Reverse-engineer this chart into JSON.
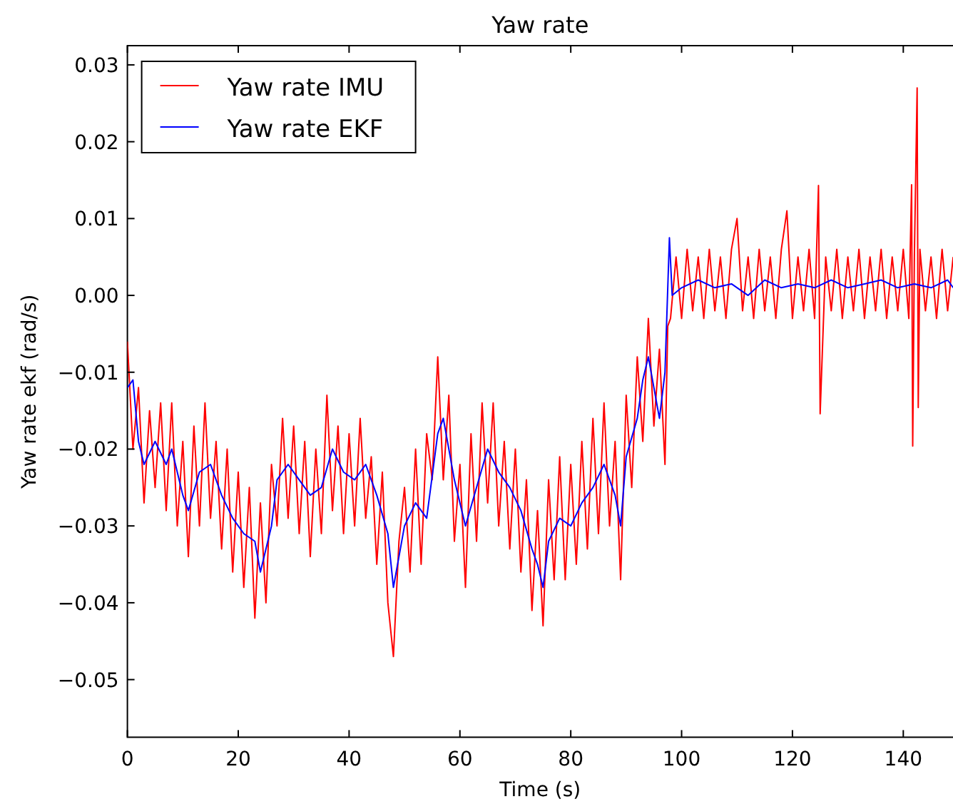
{
  "chart_data": {
    "type": "line",
    "title": "Yaw rate",
    "xlabel": "Time (s)",
    "ylabel": "Yaw rate ekf (rad/s)",
    "xlim": [
      0,
      150
    ],
    "xticks": [
      0,
      20,
      40,
      60,
      80,
      100,
      120,
      140
    ],
    "ylim": [
      -0.0575,
      0.0325
    ],
    "yticks": [
      {
        "value": -0.05,
        "label": "−0.05"
      },
      {
        "value": -0.04,
        "label": "−0.04"
      },
      {
        "value": -0.03,
        "label": "−0.03"
      },
      {
        "value": -0.02,
        "label": "−0.02"
      },
      {
        "value": -0.01,
        "label": "−0.01"
      },
      {
        "value": 0,
        "label": "0.00"
      },
      {
        "value": 0.01,
        "label": "0.01"
      },
      {
        "value": 0.02,
        "label": "0.02"
      },
      {
        "value": 0.03,
        "label": "0.03"
      }
    ],
    "grid": false,
    "legend": "top left",
    "line_style": "solid",
    "marker": "none",
    "series": [
      {
        "name": "Yaw rate IMU",
        "color": "#ff0000",
        "x": [
          0,
          1,
          2,
          3,
          4,
          5,
          6,
          7,
          8,
          9,
          10,
          11,
          12,
          13,
          14,
          15,
          16,
          17,
          18,
          19,
          20,
          21,
          22,
          23,
          24,
          25,
          26,
          27,
          28,
          29,
          30,
          31,
          32,
          33,
          34,
          35,
          36,
          37,
          38,
          39,
          40,
          41,
          42,
          43,
          44,
          45,
          46,
          47,
          48,
          49,
          50,
          51,
          52,
          53,
          54,
          55,
          56,
          57,
          58,
          59,
          60,
          61,
          62,
          63,
          64,
          65,
          66,
          67,
          68,
          69,
          70,
          71,
          72,
          73,
          74,
          75,
          76,
          77,
          78,
          79,
          80,
          81,
          82,
          83,
          84,
          85,
          86,
          87,
          88,
          89,
          90,
          91,
          92,
          93,
          94,
          95,
          96,
          97,
          97.5,
          98,
          99,
          100,
          101,
          102,
          103,
          104,
          105,
          106,
          107,
          108,
          109,
          110,
          111,
          112,
          113,
          114,
          115,
          116,
          117,
          118,
          119,
          120,
          121,
          122,
          123,
          124,
          124.7,
          125,
          126,
          127,
          128,
          129,
          130,
          131,
          132,
          133,
          134,
          135,
          136,
          137,
          138,
          139,
          140,
          141,
          141.5,
          141.7,
          142,
          142.5,
          142.7,
          143,
          144,
          145,
          146,
          147,
          148,
          149
        ],
        "values": [
          -0.006,
          -0.02,
          -0.012,
          -0.027,
          -0.015,
          -0.025,
          -0.014,
          -0.028,
          -0.014,
          -0.03,
          -0.019,
          -0.034,
          -0.017,
          -0.03,
          -0.014,
          -0.029,
          -0.019,
          -0.033,
          -0.02,
          -0.036,
          -0.023,
          -0.038,
          -0.025,
          -0.042,
          -0.027,
          -0.04,
          -0.022,
          -0.03,
          -0.016,
          -0.029,
          -0.017,
          -0.031,
          -0.019,
          -0.034,
          -0.02,
          -0.031,
          -0.013,
          -0.028,
          -0.017,
          -0.031,
          -0.018,
          -0.03,
          -0.016,
          -0.029,
          -0.021,
          -0.035,
          -0.023,
          -0.04,
          -0.047,
          -0.032,
          -0.025,
          -0.036,
          -0.02,
          -0.035,
          -0.018,
          -0.024,
          -0.008,
          -0.024,
          -0.013,
          -0.032,
          -0.022,
          -0.038,
          -0.018,
          -0.032,
          -0.014,
          -0.027,
          -0.014,
          -0.03,
          -0.019,
          -0.033,
          -0.02,
          -0.036,
          -0.024,
          -0.041,
          -0.028,
          -0.043,
          -0.024,
          -0.037,
          -0.021,
          -0.037,
          -0.022,
          -0.035,
          -0.019,
          -0.033,
          -0.016,
          -0.031,
          -0.014,
          -0.03,
          -0.019,
          -0.037,
          -0.013,
          -0.025,
          -0.008,
          -0.019,
          -0.003,
          -0.017,
          -0.007,
          -0.022,
          -0.004,
          -0.003,
          0.005,
          -0.003,
          0.006,
          -0.002,
          0.005,
          -0.003,
          0.006,
          -0.002,
          0.005,
          -0.003,
          0.006,
          0.01,
          -0.002,
          0.005,
          -0.003,
          0.006,
          -0.002,
          0.005,
          -0.003,
          0.006,
          0.011,
          -0.003,
          0.005,
          -0.002,
          0.006,
          -0.003,
          0.0143,
          -0.0154,
          0.005,
          -0.002,
          0.006,
          -0.003,
          0.005,
          -0.002,
          0.006,
          -0.003,
          0.005,
          -0.002,
          0.006,
          -0.003,
          0.005,
          -0.002,
          0.006,
          -0.003,
          0.0144,
          -0.0196,
          0.005,
          0.027,
          -0.0146,
          0.006,
          -0.002,
          0.005,
          -0.003,
          0.006,
          -0.002,
          0.005
        ]
      },
      {
        "name": "Yaw rate EKF",
        "color": "#0000ff",
        "x": [
          0,
          1,
          2,
          3,
          5,
          7,
          8,
          10,
          11,
          13,
          15,
          17,
          19,
          21,
          23,
          24,
          26,
          27,
          29,
          31,
          33,
          35,
          37,
          39,
          41,
          43,
          45,
          47,
          48,
          50,
          52,
          54,
          56,
          57,
          59,
          61,
          63,
          65,
          67,
          69,
          71,
          73,
          74,
          75,
          76,
          78,
          80,
          82,
          84,
          86,
          88,
          89,
          90,
          92,
          93,
          94,
          95,
          96,
          97,
          97.8,
          98.3,
          100,
          103,
          106,
          109,
          112,
          115,
          118,
          121,
          124,
          127,
          130,
          133,
          136,
          139,
          142,
          145,
          148,
          149
        ],
        "values": [
          -0.012,
          -0.011,
          -0.019,
          -0.022,
          -0.019,
          -0.022,
          -0.02,
          -0.026,
          -0.028,
          -0.023,
          -0.022,
          -0.026,
          -0.029,
          -0.031,
          -0.032,
          -0.036,
          -0.03,
          -0.024,
          -0.022,
          -0.024,
          -0.026,
          -0.025,
          -0.02,
          -0.023,
          -0.024,
          -0.022,
          -0.026,
          -0.031,
          -0.038,
          -0.03,
          -0.027,
          -0.029,
          -0.018,
          -0.016,
          -0.024,
          -0.03,
          -0.025,
          -0.02,
          -0.023,
          -0.025,
          -0.028,
          -0.033,
          -0.035,
          -0.038,
          -0.032,
          -0.029,
          -0.03,
          -0.027,
          -0.025,
          -0.022,
          -0.026,
          -0.03,
          -0.021,
          -0.016,
          -0.011,
          -0.008,
          -0.012,
          -0.016,
          -0.01,
          0.0075,
          0,
          0.001,
          0.002,
          0.001,
          0.0015,
          0,
          0.002,
          0.001,
          0.0015,
          0.001,
          0.002,
          0.001,
          0.0015,
          0.002,
          0.001,
          0.0015,
          0.001,
          0.002,
          0.001
        ]
      }
    ]
  }
}
